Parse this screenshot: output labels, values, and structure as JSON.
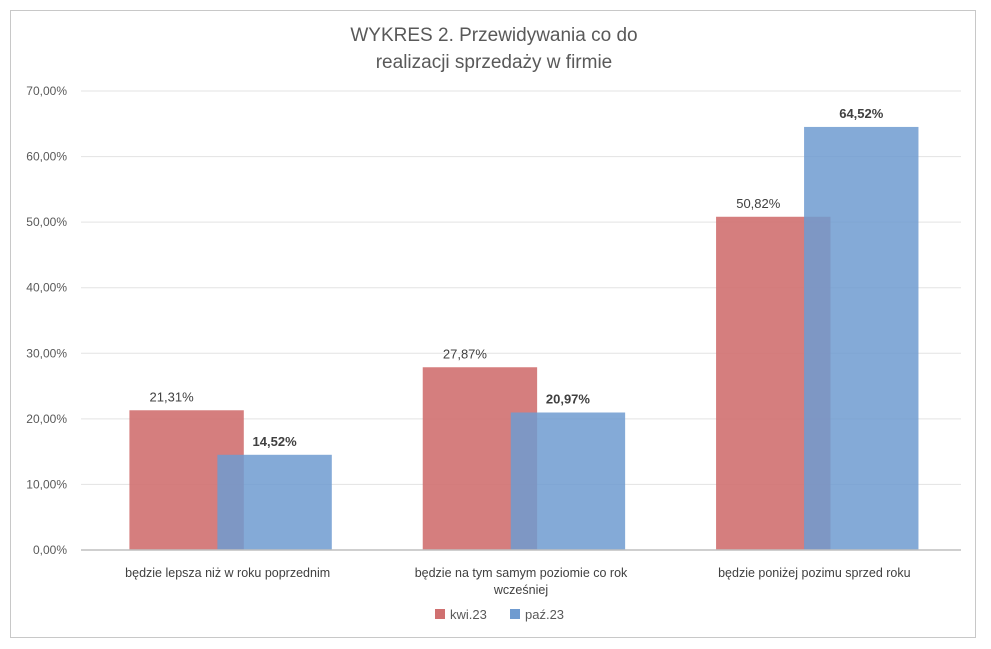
{
  "chart_data": {
    "type": "bar",
    "title": "WYKRES 2. Przewidywania co do realizacji sprzedaży w firmie",
    "title_lines": [
      "WYKRES 2. Przewidywania co do",
      "realizacji sprzedaży w firmie"
    ],
    "categories": [
      "będzie  lepsza  niż  w  roku  poprzednim",
      "będzie  na  tym  samym  poziomie  co  rok wcześniej",
      "będzie  poniżej  pozimu  sprzed  roku"
    ],
    "category_lines": [
      [
        "będzie  lepsza  niż  w  roku  poprzednim"
      ],
      [
        "będzie  na  tym  samym  poziomie  co  rok",
        "wcześniej"
      ],
      [
        "będzie  poniżej  pozimu  sprzed  roku"
      ]
    ],
    "series": [
      {
        "name": "kwi.23",
        "color": "#d07070",
        "values": [
          21.31,
          27.87,
          50.82
        ],
        "labels": [
          "21,31%",
          "27,87%",
          "50,82%"
        ],
        "label_bold": false
      },
      {
        "name": "paź.23",
        "color": "#6f9bd0",
        "values": [
          14.52,
          20.97,
          64.52
        ],
        "labels": [
          "14,52%",
          "20,97%",
          "64,52%"
        ],
        "label_bold": true
      }
    ],
    "ylim": [
      0,
      70
    ],
    "y_ticks": [
      0,
      10,
      20,
      30,
      40,
      50,
      60,
      70
    ],
    "y_tick_labels": [
      "0,00%",
      "10,00%",
      "20,00%",
      "30,00%",
      "40,00%",
      "50,00%",
      "60,00%",
      "70,00%"
    ],
    "xlabel": "",
    "ylabel": "",
    "grid": true,
    "legend_position": "bottom-center",
    "bar_overlap": true
  }
}
